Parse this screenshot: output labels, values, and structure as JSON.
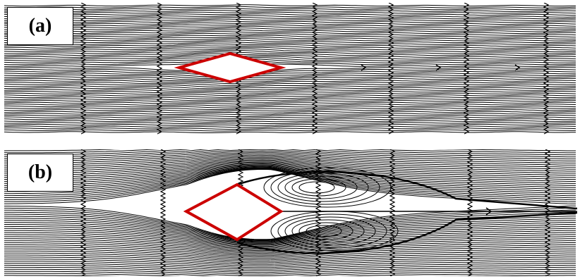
{
  "panels": [
    {
      "label": "(a)"
    },
    {
      "label": "(b)"
    }
  ],
  "colors": {
    "streamline": "#000000",
    "body_outline": "#cc0000",
    "body_fill": "#ffffff"
  }
}
